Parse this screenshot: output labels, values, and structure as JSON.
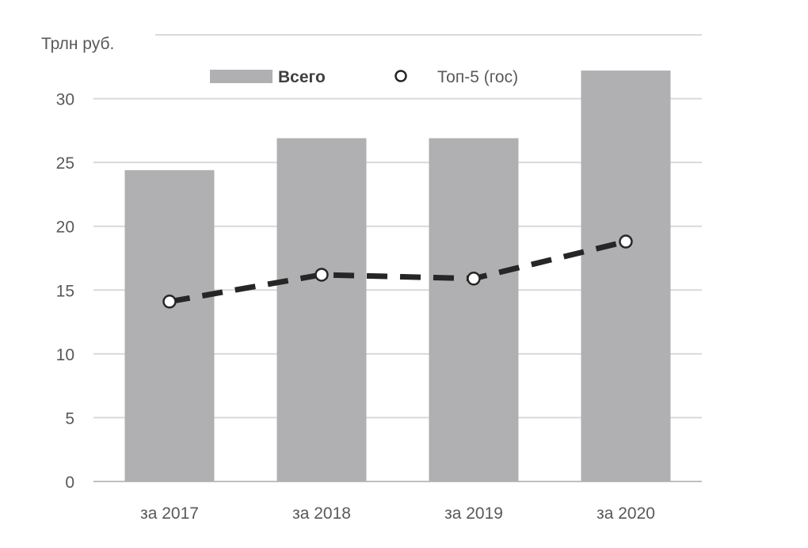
{
  "chart_data": {
    "type": "bar",
    "ylabel": "Трлн  руб.",
    "categories": [
      "за 2017",
      "за 2018",
      "за 2019",
      "за 2020"
    ],
    "series": [
      {
        "name": "Всего",
        "type": "bar",
        "color": "#b0b0b2",
        "values": [
          24.4,
          26.9,
          26.9,
          32.2
        ]
      },
      {
        "name": "Топ-5 (гос)",
        "type": "line",
        "style": "dashed",
        "marker": "open-circle",
        "color": "#262626",
        "values": [
          14.1,
          16.2,
          15.9,
          18.8
        ]
      }
    ],
    "ylim": [
      0,
      35
    ],
    "yticks": [
      0,
      5,
      10,
      15,
      20,
      25,
      30
    ],
    "grid": true,
    "legend": "top"
  }
}
